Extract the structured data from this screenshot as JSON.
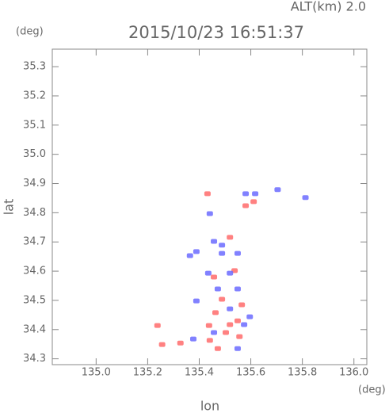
{
  "chart_data": {
    "type": "scatter",
    "title": "2015/10/23 16:51:37",
    "subtitle": "ALT(km)  2.0",
    "y_unit": "(deg)",
    "x_unit": "(deg)",
    "xlabel": "lon",
    "ylabel": "lat",
    "xlim": [
      134.83,
      136.05
    ],
    "ylim": [
      34.28,
      35.36
    ],
    "xticks": [
      {
        "value": 135,
        "label": "135.0"
      },
      135.2,
      135.4,
      135.6,
      135.8,
      {
        "value": 136,
        "label": "136.0"
      }
    ],
    "yticks": [
      34.3,
      34.4,
      34.5,
      34.6,
      34.7,
      34.8,
      34.9,
      {
        "value": 35,
        "label": "35.0"
      },
      35.1,
      35.2,
      35.3
    ],
    "series": [
      {
        "color": "#ff6b6b",
        "x": [
          135.238,
          135.256,
          135.327,
          135.438,
          135.463,
          135.488,
          135.503,
          135.519,
          135.549,
          135.556,
          135.457,
          135.472,
          135.565,
          135.58,
          135.611,
          135.432,
          135.519,
          135.537,
          135.441
        ],
        "values": [
          34.414,
          34.349,
          34.354,
          34.414,
          34.458,
          34.504,
          34.39,
          34.417,
          34.43,
          34.376,
          34.58,
          34.335,
          34.485,
          34.824,
          34.838,
          34.865,
          34.716,
          34.602,
          34.363
        ]
      },
      {
        "color": "#6b6bff",
        "x": [
          135.389,
          135.364,
          135.435,
          135.519,
          135.488,
          135.549,
          135.389,
          135.377,
          135.472,
          135.549,
          135.457,
          135.488,
          135.574,
          135.596,
          135.519,
          135.441,
          135.58,
          135.704,
          135.457,
          135.549,
          135.617,
          135.812
        ],
        "values": [
          34.667,
          34.653,
          34.593,
          34.593,
          34.661,
          34.661,
          34.498,
          34.368,
          34.539,
          34.539,
          34.702,
          34.689,
          34.417,
          34.444,
          34.471,
          34.797,
          34.865,
          34.879,
          34.39,
          34.335,
          34.865,
          34.852
        ]
      }
    ]
  }
}
